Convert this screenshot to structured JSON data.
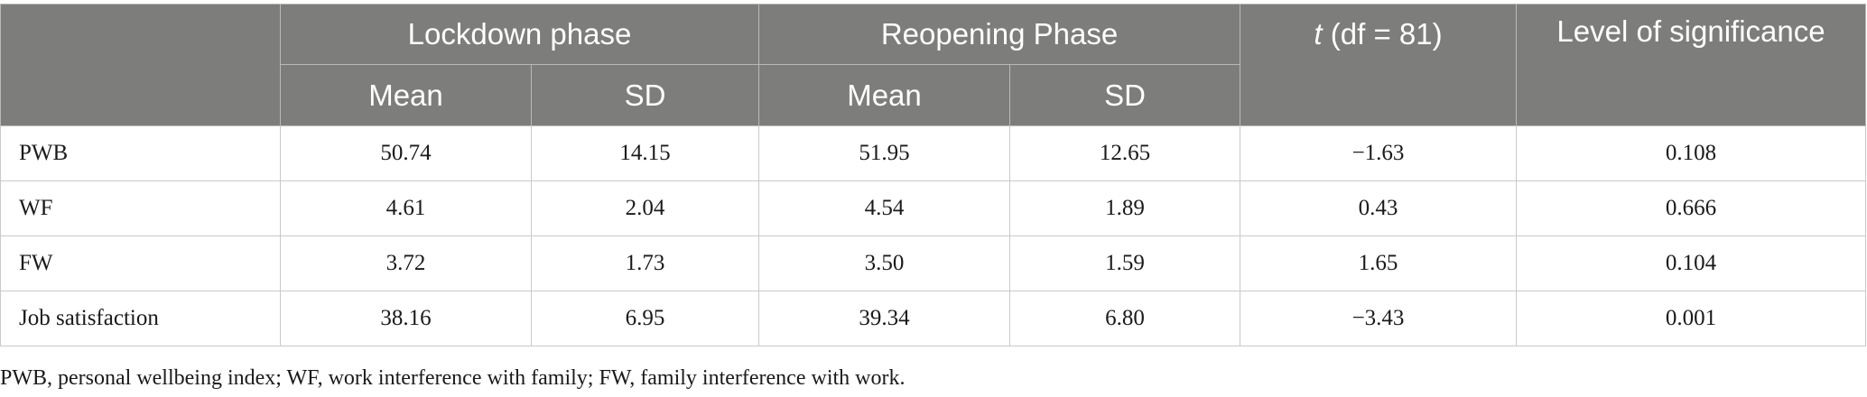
{
  "table": {
    "header": {
      "group1": "Lockdown phase",
      "group2": "Reopening Phase",
      "t_prefix": "t",
      "t_suffix": " (df = 81)",
      "level": "Level of significance",
      "mean1": "Mean",
      "sd1": "SD",
      "mean2": "Mean",
      "sd2": "SD"
    },
    "rows": [
      {
        "label": "PWB",
        "lock_mean": "50.74",
        "lock_sd": "14.15",
        "reopen_mean": "51.95",
        "reopen_sd": "12.65",
        "t": "−1.63",
        "sig": "0.108"
      },
      {
        "label": "WF",
        "lock_mean": "4.61",
        "lock_sd": "2.04",
        "reopen_mean": "4.54",
        "reopen_sd": "1.89",
        "t": "0.43",
        "sig": "0.666"
      },
      {
        "label": "FW",
        "lock_mean": "3.72",
        "lock_sd": "1.73",
        "reopen_mean": "3.50",
        "reopen_sd": "1.59",
        "t": "1.65",
        "sig": "0.104"
      },
      {
        "label": "Job satisfaction",
        "lock_mean": "38.16",
        "lock_sd": "6.95",
        "reopen_mean": "39.34",
        "reopen_sd": "6.80",
        "t": "−3.43",
        "sig": "0.001"
      }
    ]
  },
  "footnote": "PWB, personal wellbeing index; WF, work interference with family; FW, family interference with work."
}
